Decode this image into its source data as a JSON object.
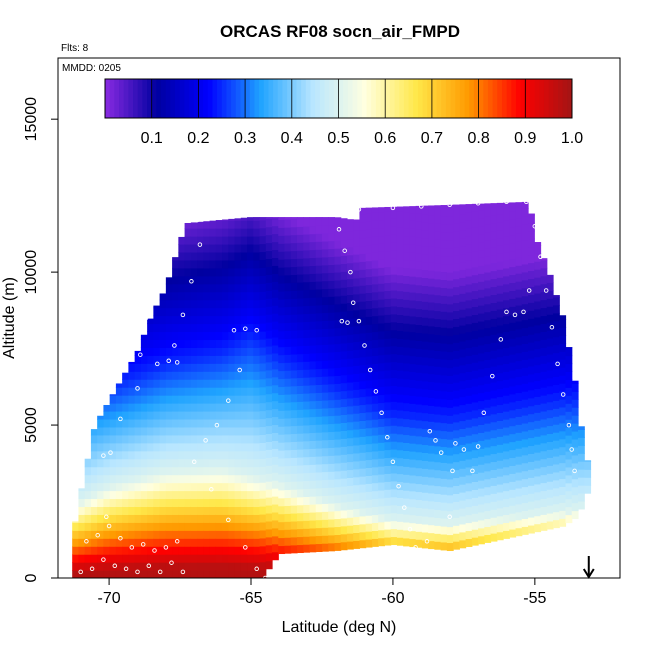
{
  "chart_data": {
    "type": "heatmap",
    "title": "ORCAS RF08 socn_air_FMPD",
    "annotations": {
      "flights": "Flts: 8",
      "date": "MMDD: 0205"
    },
    "xlabel": "Latitude (deg N)",
    "ylabel": "Altitude (m)",
    "xlim": [
      -71.8,
      -52.0
    ],
    "ylim": [
      0,
      17000
    ],
    "x_ticks": [
      -70,
      -65,
      -60,
      -55
    ],
    "x_tick_labels": [
      "-70",
      "-65",
      "-60",
      "-55"
    ],
    "y_ticks": [
      0,
      5000,
      10000,
      15000
    ],
    "y_tick_labels": [
      "0",
      "5000",
      "10000",
      "15000"
    ],
    "colorbar": {
      "min": 0.0,
      "max": 1.0,
      "ticks": [
        0.1,
        0.2,
        0.3,
        0.4,
        0.5,
        0.6,
        0.7,
        0.8,
        0.9,
        1.0
      ],
      "tick_labels": [
        "0.1",
        "0.2",
        "0.3",
        "0.4",
        "0.5",
        "0.6",
        "0.7",
        "0.8",
        "0.9",
        "1.0"
      ],
      "colors": [
        "#8a2be2",
        "#0000a0",
        "#0000ff",
        "#1fa3ff",
        "#b8e6ff",
        "#ffffe0",
        "#ffe84a",
        "#ff9a00",
        "#ff0000",
        "#a31515"
      ]
    },
    "field": {
      "description": "fraction of air of southern-ocean origin on a latitude-altitude section",
      "bottom_boundary_m": [
        [
          -71.3,
          0
        ],
        [
          -67.0,
          0
        ],
        [
          -64.6,
          0
        ],
        [
          -64.0,
          800
        ],
        [
          -62.0,
          900
        ],
        [
          -60.0,
          1100
        ],
        [
          -58.0,
          900
        ],
        [
          -56.0,
          1300
        ],
        [
          -54.0,
          1700
        ],
        [
          -53.5,
          2000
        ],
        [
          -53.2,
          2600
        ],
        [
          -53.0,
          3300
        ]
      ],
      "top_boundary_m": [
        [
          -71.3,
          1300
        ],
        [
          -71.0,
          2800
        ],
        [
          -70.5,
          5000
        ],
        [
          -70.0,
          5800
        ],
        [
          -69.5,
          6600
        ],
        [
          -69.0,
          7400
        ],
        [
          -68.5,
          8600
        ],
        [
          -68.0,
          9500
        ],
        [
          -67.6,
          10700
        ],
        [
          -67.3,
          11600
        ],
        [
          -65.0,
          11800
        ],
        [
          -62.0,
          11800
        ],
        [
          -61.3,
          11700
        ],
        [
          -61.1,
          12100
        ],
        [
          -58.0,
          12200
        ],
        [
          -55.2,
          12300
        ],
        [
          -55.0,
          11200
        ],
        [
          -54.5,
          10000
        ],
        [
          -54.0,
          8500
        ],
        [
          -53.5,
          6000
        ],
        [
          -53.3,
          4400
        ],
        [
          -53.0,
          3300
        ]
      ],
      "half_level_m": [
        [
          -71.3,
          2400
        ],
        [
          -70.0,
          3000
        ],
        [
          -68.0,
          3500
        ],
        [
          -66.0,
          3600
        ],
        [
          -64.0,
          3100
        ],
        [
          -62.0,
          2400
        ],
        [
          -60.0,
          1900
        ],
        [
          -58.0,
          1800
        ],
        [
          -56.0,
          2000
        ],
        [
          -54.0,
          2200
        ],
        [
          -53.0,
          2300
        ]
      ],
      "blue_level_m": [
        [
          -71.3,
          6000
        ],
        [
          -70.0,
          6300
        ],
        [
          -68.0,
          7000
        ],
        [
          -66.0,
          7400
        ],
        [
          -65.0,
          7900
        ],
        [
          -64.0,
          7200
        ],
        [
          -62.0,
          6200
        ],
        [
          -60.0,
          5300
        ],
        [
          -58.0,
          5200
        ],
        [
          -56.0,
          5500
        ],
        [
          -54.0,
          5800
        ],
        [
          -53.0,
          5900
        ]
      ]
    },
    "flight_track": [
      [
        -71.0,
        200
      ],
      [
        -70.8,
        1200
      ],
      [
        -70.6,
        300
      ],
      [
        -70.4,
        1400
      ],
      [
        -70.2,
        600
      ],
      [
        -70.0,
        1700
      ],
      [
        -69.8,
        400
      ],
      [
        -69.6,
        1300
      ],
      [
        -69.4,
        300
      ],
      [
        -69.2,
        1000
      ],
      [
        -69.0,
        200
      ],
      [
        -68.8,
        1100
      ],
      [
        -68.6,
        400
      ],
      [
        -68.4,
        900
      ],
      [
        -68.2,
        200
      ],
      [
        -68.0,
        1000
      ],
      [
        -67.8,
        500
      ],
      [
        -67.6,
        1200
      ],
      [
        -67.4,
        200
      ],
      [
        -70.1,
        2000
      ],
      [
        -69.95,
        4100
      ],
      [
        -70.2,
        4000
      ],
      [
        -69.6,
        5200
      ],
      [
        -69.0,
        6200
      ],
      [
        -68.3,
        7000
      ],
      [
        -67.7,
        7600
      ],
      [
        -67.4,
        8600
      ],
      [
        -67.1,
        9700
      ],
      [
        -66.8,
        10900
      ],
      [
        -66.9,
        11700
      ],
      [
        -66.0,
        11850
      ],
      [
        -65.0,
        11900
      ],
      [
        -64.0,
        11950
      ],
      [
        -63.0,
        11950
      ],
      [
        -62.2,
        11900
      ],
      [
        -61.9,
        11400
      ],
      [
        -61.7,
        10700
      ],
      [
        -61.5,
        10000
      ],
      [
        -61.4,
        9000
      ],
      [
        -61.2,
        8400
      ],
      [
        -61.0,
        7600
      ],
      [
        -60.8,
        6800
      ],
      [
        -60.6,
        6100
      ],
      [
        -60.4,
        5400
      ],
      [
        -60.2,
        4600
      ],
      [
        -60.0,
        3800
      ],
      [
        -59.8,
        3000
      ],
      [
        -59.6,
        2300
      ],
      [
        -59.4,
        1600
      ],
      [
        -59.2,
        1000
      ],
      [
        -59.0,
        500
      ],
      [
        -58.8,
        300
      ],
      [
        -58.5,
        200
      ],
      [
        -58.2,
        700
      ],
      [
        -58.0,
        2000
      ],
      [
        -57.9,
        3500
      ],
      [
        -57.8,
        4400
      ],
      [
        -57.5,
        4200
      ],
      [
        -57.2,
        3500
      ],
      [
        -57.0,
        4300
      ],
      [
        -56.8,
        5400
      ],
      [
        -56.5,
        6600
      ],
      [
        -56.2,
        7800
      ],
      [
        -56.0,
        8700
      ],
      [
        -55.7,
        8600
      ],
      [
        -55.4,
        8700
      ],
      [
        -55.2,
        9400
      ],
      [
        -61.2,
        12050
      ],
      [
        -60.0,
        12100
      ],
      [
        -59.0,
        12150
      ],
      [
        -58.0,
        12200
      ],
      [
        -57.0,
        12250
      ],
      [
        -56.0,
        12300
      ],
      [
        -55.3,
        12300
      ],
      [
        -55.0,
        11500
      ],
      [
        -54.8,
        10500
      ],
      [
        -54.6,
        9400
      ],
      [
        -54.4,
        8200
      ],
      [
        -54.2,
        7000
      ],
      [
        -54.0,
        6000
      ],
      [
        -53.8,
        5000
      ],
      [
        -53.7,
        4200
      ],
      [
        -53.6,
        3500
      ],
      [
        -65.6,
        8100
      ],
      [
        -65.2,
        8150
      ],
      [
        -64.8,
        8100
      ],
      [
        -65.4,
        6800
      ],
      [
        -65.8,
        5800
      ],
      [
        -66.2,
        5000
      ],
      [
        -66.6,
        4500
      ],
      [
        -67.0,
        3800
      ],
      [
        -66.4,
        2900
      ],
      [
        -65.8,
        1900
      ],
      [
        -65.2,
        1000
      ],
      [
        -64.8,
        300
      ],
      [
        -64.5,
        0
      ],
      [
        -61.8,
        8400
      ],
      [
        -61.6,
        8350
      ],
      [
        -68.7,
        8500
      ],
      [
        -68.9,
        7300
      ],
      [
        -67.9,
        7100
      ],
      [
        -67.6,
        7050
      ],
      [
        -58.7,
        4800
      ],
      [
        -58.5,
        4500
      ],
      [
        -58.3,
        4100
      ],
      [
        -58.8,
        1200
      ],
      [
        -58.6,
        500
      ]
    ],
    "arrow_latitude": -53.1
  }
}
